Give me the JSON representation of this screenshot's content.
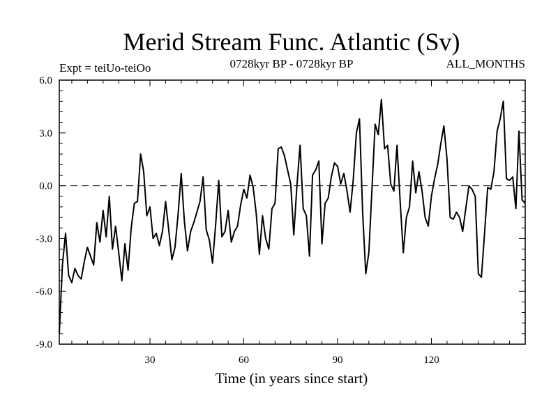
{
  "chart_data": {
    "type": "line",
    "title": "Merid Stream Func. Atlantic (Sv)",
    "subtitle_left": "Expt = teiUo-teiOo",
    "subtitle_center": "0728kyr BP - 0728kyr BP",
    "subtitle_right": "ALL_MONTHS",
    "xlabel": "Time (in years since start)",
    "ylabel": "",
    "xlim": [
      1,
      150
    ],
    "ylim": [
      -9,
      6
    ],
    "xticks": [
      30,
      60,
      90,
      120
    ],
    "xtick_labels": [
      "30",
      "60",
      "90",
      "120"
    ],
    "yticks": [
      6,
      3,
      0,
      -3,
      -6,
      -9
    ],
    "ytick_labels": [
      "6.0",
      "3.0",
      "0.0",
      "-3.0",
      "-6.0",
      "-9.0"
    ],
    "reference_line": {
      "y": 0,
      "style": "dashed"
    },
    "grid": false,
    "series": [
      {
        "name": "Merid Stream Func. Atlantic",
        "x": [
          1,
          2,
          3,
          4,
          5,
          6,
          7,
          8,
          9,
          10,
          11,
          12,
          13,
          14,
          15,
          16,
          17,
          18,
          19,
          20,
          21,
          22,
          23,
          24,
          25,
          26,
          27,
          28,
          29,
          30,
          31,
          32,
          33,
          34,
          35,
          36,
          37,
          38,
          39,
          40,
          41,
          42,
          43,
          44,
          45,
          46,
          47,
          48,
          49,
          50,
          51,
          52,
          53,
          54,
          55,
          56,
          57,
          58,
          59,
          60,
          61,
          62,
          63,
          64,
          65,
          66,
          67,
          68,
          69,
          70,
          71,
          72,
          73,
          74,
          75,
          76,
          77,
          78,
          79,
          80,
          81,
          82,
          83,
          84,
          85,
          86,
          87,
          88,
          89,
          90,
          91,
          92,
          93,
          94,
          95,
          96,
          97,
          98,
          99,
          100,
          101,
          102,
          103,
          104,
          105,
          106,
          107,
          108,
          109,
          110,
          111,
          112,
          113,
          114,
          115,
          116,
          117,
          118,
          119,
          120,
          121,
          122,
          123,
          124,
          125,
          126,
          127,
          128,
          129,
          130,
          131,
          132,
          133,
          134,
          135,
          136,
          137,
          138,
          139,
          140,
          141,
          142,
          143,
          144,
          145,
          146,
          147,
          148,
          149,
          150
        ],
        "y": [
          -8.4,
          -4.5,
          -2.7,
          -5.1,
          -5.5,
          -4.7,
          -5.1,
          -5.3,
          -4.3,
          -3.5,
          -4.0,
          -4.5,
          -2.1,
          -3.2,
          -1.4,
          -2.9,
          -0.6,
          -3.6,
          -2.3,
          -3.8,
          -5.4,
          -3.3,
          -4.8,
          -2.4,
          -1.0,
          -0.9,
          1.8,
          0.8,
          -1.7,
          -1.2,
          -3.0,
          -2.7,
          -3.4,
          -2.6,
          -0.9,
          -2.5,
          -4.2,
          -3.5,
          -1.6,
          0.7,
          -2.0,
          -3.7,
          -2.6,
          -2.1,
          -1.5,
          -0.9,
          0.5,
          -2.5,
          -3.1,
          -4.4,
          -2.2,
          0.3,
          -2.9,
          -2.6,
          -1.4,
          -3.2,
          -2.6,
          -2.3,
          -1.1,
          -0.2,
          -0.7,
          0.6,
          -0.1,
          -1.6,
          -3.9,
          -1.7,
          -3.0,
          -3.6,
          -1.3,
          -1.0,
          2.1,
          2.2,
          1.7,
          0.9,
          0.1,
          -2.8,
          0.0,
          2.3,
          -1.3,
          -1.7,
          -4.0,
          0.6,
          0.9,
          1.4,
          -3.3,
          -1.0,
          -0.7,
          0.5,
          1.3,
          1.1,
          0.1,
          0.7,
          -0.3,
          -1.5,
          0.3,
          3.0,
          3.8,
          -1.5,
          -5.0,
          -3.8,
          -0.2,
          3.5,
          2.9,
          4.9,
          2.1,
          2.3,
          0.1,
          -0.3,
          2.3,
          -0.9,
          -3.8,
          -1.8,
          -1.2,
          1.4,
          -0.4,
          0.8,
          -0.3,
          -1.8,
          -2.3,
          -0.6,
          0.4,
          1.2,
          2.4,
          3.4,
          1.5,
          -1.8,
          -1.9,
          -1.5,
          -1.8,
          -2.6,
          -1.3,
          0.0,
          -0.2,
          -0.6,
          -5.0,
          -5.2,
          -2.7,
          -0.1,
          -0.2,
          0.8,
          3.1,
          3.8,
          4.8,
          0.4,
          0.3,
          0.5,
          -1.3,
          3.1,
          -0.8,
          -1.0
        ]
      }
    ]
  }
}
